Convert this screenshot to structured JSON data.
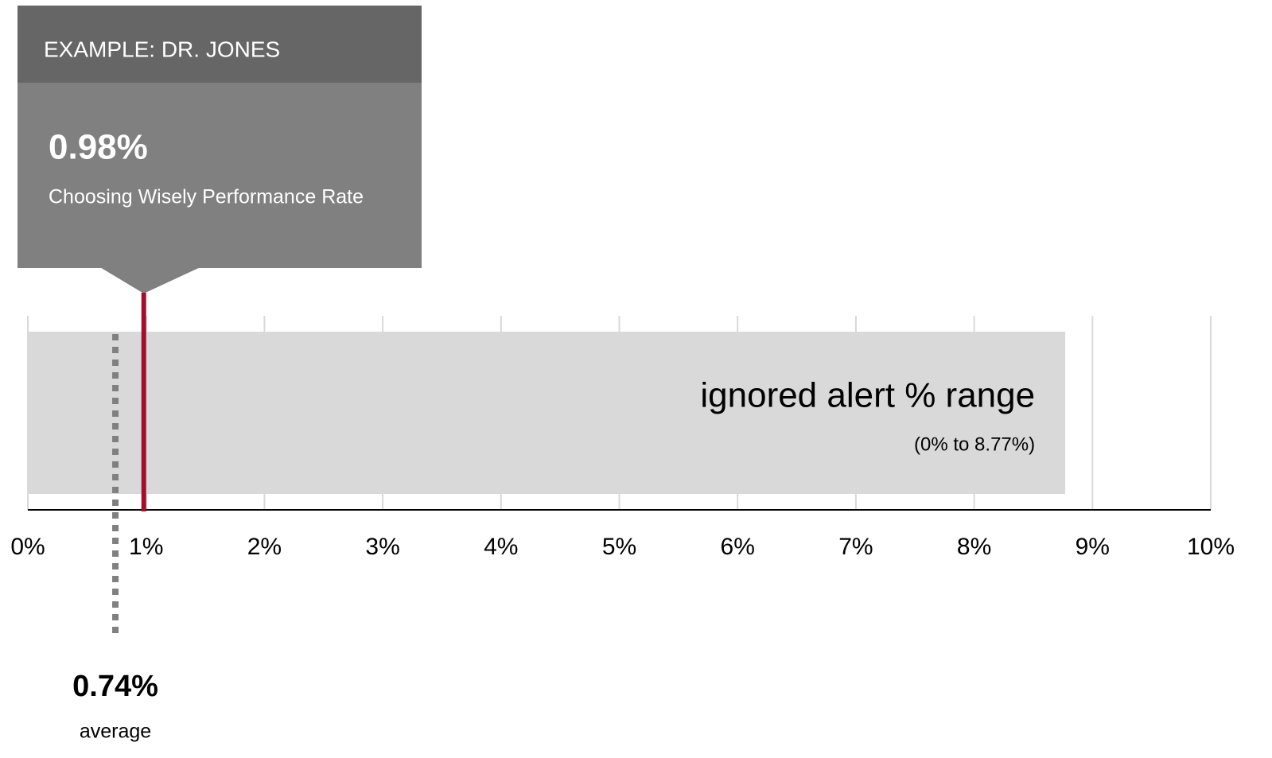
{
  "chart_data": {
    "type": "range",
    "xlim": [
      0,
      10
    ],
    "xticks": [
      {
        "value": 0,
        "label": "0%"
      },
      {
        "value": 1,
        "label": "1%"
      },
      {
        "value": 2,
        "label": "2%"
      },
      {
        "value": 3,
        "label": "3%"
      },
      {
        "value": 4,
        "label": "4%"
      },
      {
        "value": 5,
        "label": "5%"
      },
      {
        "value": 6,
        "label": "6%"
      },
      {
        "value": 7,
        "label": "7%"
      },
      {
        "value": 8,
        "label": "8%"
      },
      {
        "value": 9,
        "label": "9%"
      },
      {
        "value": 10,
        "label": "10%"
      }
    ],
    "grid": true,
    "range": {
      "label": "ignored alert % range",
      "note": "(0% to 8.77%)",
      "start": 0,
      "end": 8.77,
      "color": "#d9d9d9"
    },
    "marker": {
      "title": "EXAMPLE: DR. JONES",
      "value": 0.98,
      "value_label": "0.98%",
      "label": "Choosing Wisely Performance Rate",
      "color": "#a50d2d"
    },
    "average": {
      "value": 0.74,
      "value_label": "0.74%",
      "label": "average",
      "color": "#808080"
    }
  }
}
